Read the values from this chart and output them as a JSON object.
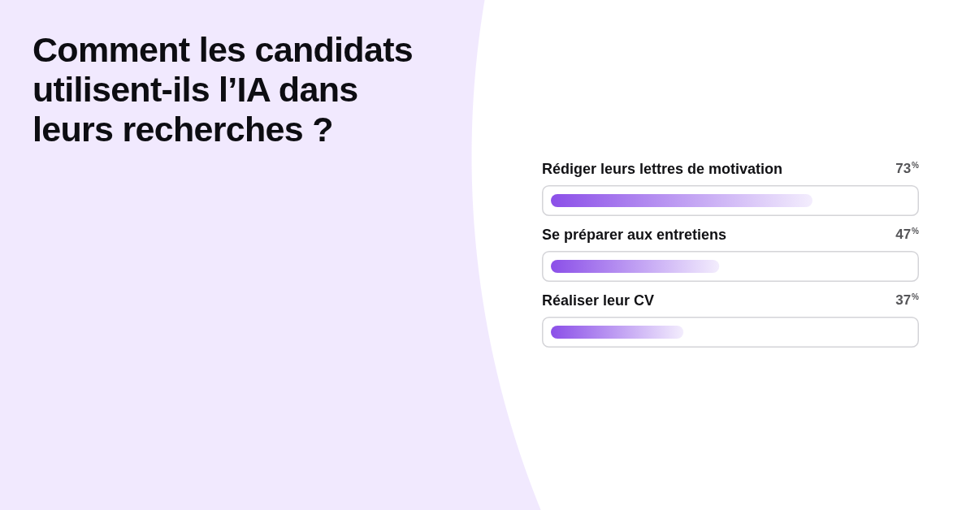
{
  "chart_data": {
    "type": "bar",
    "orientation": "horizontal",
    "title": "Comment les candidats utilisent-ils l’IA dans leurs recherches ?",
    "categories": [
      "Rédiger leurs lettres de motivation",
      "Se préparer aux entretiens",
      "Réaliser leur CV"
    ],
    "values": [
      73,
      47,
      37
    ],
    "value_labels": [
      "73$^{%}$",
      "47$^{%}$",
      "37$^{%}$"
    ],
    "color": "#8b4fe8",
    "tick_labels": "y"
  }
}
